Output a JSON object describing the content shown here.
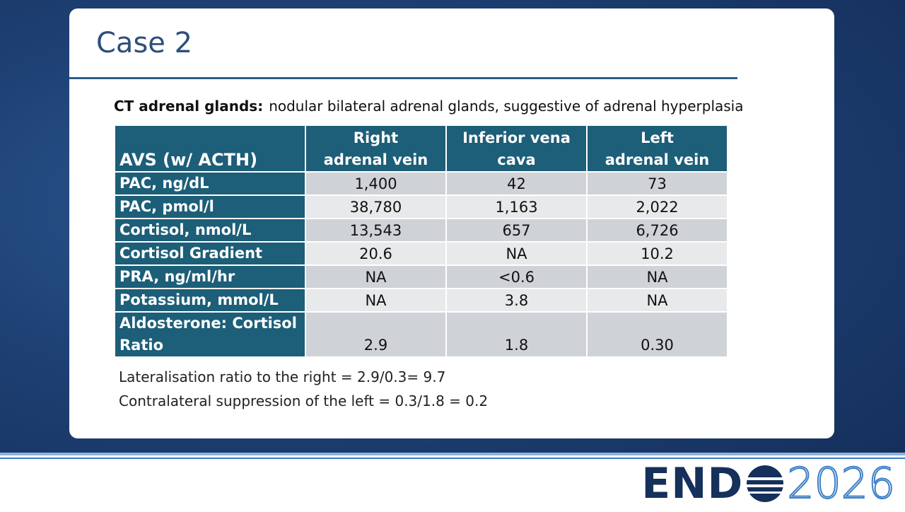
{
  "title": "Case 2",
  "intro": {
    "label": "CT adrenal glands:",
    "text": "nodular bilateral adrenal glands, suggestive of adrenal hyperplasia"
  },
  "table": {
    "header": [
      [
        "AVS (w/ ACTH)"
      ],
      [
        "Right",
        "adrenal vein"
      ],
      [
        "Inferior vena",
        "cava"
      ],
      [
        "Left",
        "adrenal vein"
      ]
    ],
    "rows": [
      [
        "PAC, ng/dL",
        "1,400",
        "42",
        "73"
      ],
      [
        "PAC, pmol/l",
        "38,780",
        "1,163",
        "2,022"
      ],
      [
        "Cortisol, nmol/L",
        "13,543",
        "657",
        "6,726"
      ],
      [
        "Cortisol Gradient",
        "20.6",
        "NA",
        "10.2"
      ],
      [
        "PRA, ng/ml/hr",
        "NA",
        "<0.6",
        "NA"
      ],
      [
        "Potassium, mmol/L",
        "NA",
        "3.8",
        "NA"
      ],
      [
        "Aldosterone: Cortisol Ratio",
        "2.9",
        "1.8",
        "0.30"
      ]
    ]
  },
  "notes": [
    "Lateralisation ratio to the right = 2.9/0.3= 9.7",
    "Contralateral suppression of the left = 0.3/1.8 = 0.2"
  ],
  "logo": {
    "name": "END",
    "year": "2026"
  }
}
